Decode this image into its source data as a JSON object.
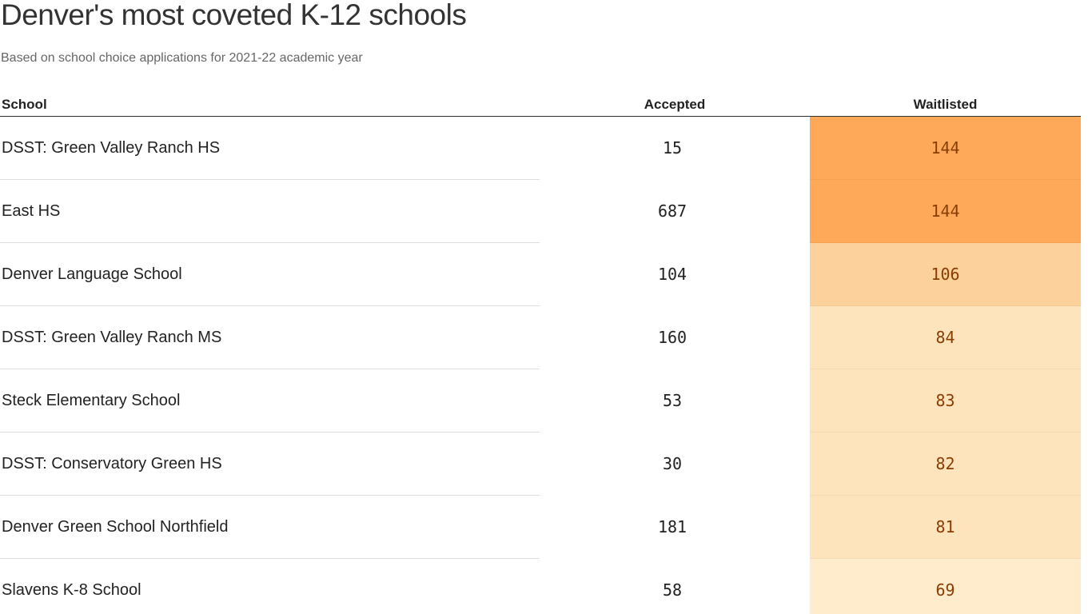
{
  "chart_data": {
    "type": "table",
    "title": "Denver's most coveted K-12 schools",
    "subtitle": "Based on school choice applications for 2021-22 academic year",
    "columns": [
      "School",
      "Accepted",
      "Waitlisted"
    ],
    "rows": [
      {
        "school": "DSST: Green Valley Ranch HS",
        "accepted": "15",
        "waitlisted": "144",
        "color": "#fea95a"
      },
      {
        "school": "East HS",
        "accepted": "687",
        "waitlisted": "144",
        "color": "#fea95a"
      },
      {
        "school": "Denver Language School",
        "accepted": "104",
        "waitlisted": "106",
        "color": "#fdd19c"
      },
      {
        "school": "DSST: Green Valley Ranch MS",
        "accepted": "160",
        "waitlisted": "84",
        "color": "#fde4bd"
      },
      {
        "school": "Steck Elementary School",
        "accepted": "53",
        "waitlisted": "83",
        "color": "#fde4bd"
      },
      {
        "school": "DSST: Conservatory Green HS",
        "accepted": "30",
        "waitlisted": "82",
        "color": "#fde4bd"
      },
      {
        "school": "Denver Green School Northfield",
        "accepted": "181",
        "waitlisted": "81",
        "color": "#fde4bd"
      },
      {
        "school": "Slavens K-8 School",
        "accepted": "58",
        "waitlisted": "69",
        "color": "#feeccd"
      }
    ]
  }
}
